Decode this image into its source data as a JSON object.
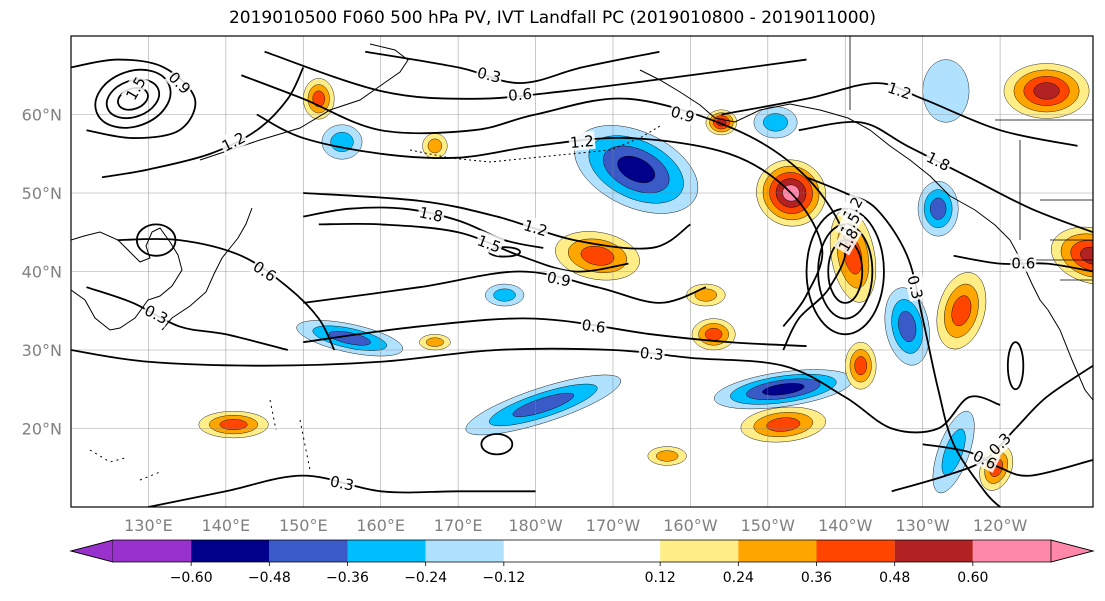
{
  "title": "2019010500 F060 500 hPa PV, IVT Landfall PC (2019010800 - 2019011000)",
  "map": {
    "lon_ticks": [
      {
        "label": "130°E",
        "lon": 130
      },
      {
        "label": "140°E",
        "lon": 140
      },
      {
        "label": "150°E",
        "lon": 150
      },
      {
        "label": "160°E",
        "lon": 160
      },
      {
        "label": "170°E",
        "lon": 170
      },
      {
        "label": "180°W",
        "lon": 180
      },
      {
        "label": "170°W",
        "lon": 190
      },
      {
        "label": "160°W",
        "lon": 200
      },
      {
        "label": "150°W",
        "lon": 210
      },
      {
        "label": "140°W",
        "lon": 220
      },
      {
        "label": "130°W",
        "lon": 230
      },
      {
        "label": "120°W",
        "lon": 240
      }
    ],
    "lat_ticks": [
      {
        "label": "20°N",
        "lat": 20
      },
      {
        "label": "30°N",
        "lat": 30
      },
      {
        "label": "40°N",
        "lat": 40
      },
      {
        "label": "50°N",
        "lat": 50
      },
      {
        "label": "60°N",
        "lat": 60
      }
    ],
    "fill_blobs": [
      {
        "lon": 193,
        "lat": 53,
        "rx": 8.5,
        "ry": 4.8,
        "rot": 25,
        "level": -0.6
      },
      {
        "lon": 213,
        "lat": 50,
        "rx": 4.5,
        "ry": 4.2,
        "rot": 20,
        "level": 0.6
      },
      {
        "lon": 188,
        "lat": 42,
        "rx": 5.5,
        "ry": 3,
        "rot": 10,
        "level": 0.42
      },
      {
        "lon": 221,
        "lat": 42,
        "rx": 2.8,
        "ry": 6,
        "rot": -10,
        "level": 0.45
      },
      {
        "lon": 232,
        "lat": 48,
        "rx": 2.6,
        "ry": 3.5,
        "rot": 0,
        "level": -0.45
      },
      {
        "lon": 181,
        "lat": 23,
        "rx": 10.5,
        "ry": 2.2,
        "rot": -18,
        "level": -0.48
      },
      {
        "lon": 212,
        "lat": 25,
        "rx": 9,
        "ry": 2.2,
        "rot": -8,
        "level": -0.5
      },
      {
        "lon": 235,
        "lat": 35,
        "rx": 3,
        "ry": 5,
        "rot": 15,
        "level": 0.4
      },
      {
        "lon": 228,
        "lat": 33,
        "rx": 2.8,
        "ry": 5,
        "rot": -10,
        "level": -0.38
      },
      {
        "lon": 222,
        "lat": 28,
        "rx": 2,
        "ry": 3,
        "rot": 0,
        "level": 0.36
      },
      {
        "lon": 141,
        "lat": 20.5,
        "rx": 4.5,
        "ry": 1.7,
        "rot": 0,
        "level": 0.4
      },
      {
        "lon": 156,
        "lat": 31.5,
        "rx": 7,
        "ry": 1.8,
        "rot": 12,
        "level": -0.38
      },
      {
        "lon": 252,
        "lat": 42,
        "rx": 5.5,
        "ry": 3.5,
        "rot": 15,
        "level": 0.52
      },
      {
        "lon": 246,
        "lat": 63,
        "rx": 5.5,
        "ry": 3.5,
        "rot": 0,
        "level": 0.5
      },
      {
        "lon": 212,
        "lat": 20.5,
        "rx": 5.5,
        "ry": 2.2,
        "rot": -5,
        "level": 0.42
      },
      {
        "lon": 234,
        "lat": 17,
        "rx": 2,
        "ry": 5.5,
        "rot": 20,
        "level": -0.3
      },
      {
        "lon": 239.5,
        "lat": 15,
        "rx": 2,
        "ry": 3,
        "rot": 20,
        "level": 0.4
      },
      {
        "lon": 152,
        "lat": 62,
        "rx": 2,
        "ry": 2.6,
        "rot": 0,
        "level": 0.38
      },
      {
        "lon": 155,
        "lat": 56.5,
        "rx": 2.6,
        "ry": 2.2,
        "rot": 0,
        "level": -0.32
      },
      {
        "lon": 203,
        "lat": 32,
        "rx": 2.8,
        "ry": 2,
        "rot": 0,
        "level": 0.38
      },
      {
        "lon": 204,
        "lat": 59,
        "rx": 2,
        "ry": 1.6,
        "rot": 0,
        "level": 0.5
      },
      {
        "lon": 211,
        "lat": 59,
        "rx": 2.8,
        "ry": 2,
        "rot": 0,
        "level": -0.3
      },
      {
        "lon": 233,
        "lat": 63,
        "rx": 3,
        "ry": 4,
        "rot": 0,
        "level": -0.22
      },
      {
        "lon": 167,
        "lat": 31,
        "rx": 2,
        "ry": 1,
        "rot": 0,
        "level": 0.3
      },
      {
        "lon": 167,
        "lat": 56,
        "rx": 1.6,
        "ry": 1.6,
        "rot": 0,
        "level": 0.35
      },
      {
        "lon": 197,
        "lat": 16.5,
        "rx": 2.5,
        "ry": 1.2,
        "rot": 0,
        "level": 0.3
      },
      {
        "lon": 202,
        "lat": 37,
        "rx": 2.5,
        "ry": 1.4,
        "rot": 0,
        "level": 0.34
      },
      {
        "lon": 176,
        "lat": 37,
        "rx": 2.5,
        "ry": 1.4,
        "rot": 0,
        "level": -0.27
      }
    ],
    "contour_lines": [
      {
        "label": "0.3",
        "points": [
          [
            120,
            30
          ],
          [
            130,
            28.5
          ],
          [
            145,
            28
          ],
          [
            160,
            28.5
          ],
          [
            175,
            30
          ],
          [
            190,
            30
          ],
          [
            200,
            29
          ],
          [
            212,
            28
          ],
          [
            220,
            24
          ],
          [
            226,
            20
          ],
          [
            232,
            20
          ],
          [
            236,
            24
          ],
          [
            240,
            23
          ]
        ]
      },
      {
        "label": "0.6",
        "points": [
          [
            150,
            31
          ],
          [
            165,
            33
          ],
          [
            180,
            34
          ],
          [
            195,
            32
          ],
          [
            205,
            31
          ],
          [
            215,
            30.5
          ]
        ]
      },
      {
        "label": "0.9",
        "points": [
          [
            150,
            36
          ],
          [
            165,
            38
          ],
          [
            178,
            40
          ],
          [
            188,
            38
          ],
          [
            196,
            36
          ],
          [
            202,
            38
          ]
        ]
      },
      {
        "label": "1.2",
        "points": [
          [
            150,
            50
          ],
          [
            165,
            49
          ],
          [
            175,
            47
          ],
          [
            185,
            44
          ],
          [
            195,
            43
          ],
          [
            200,
            46
          ]
        ]
      },
      {
        "label": "1.5",
        "points": [
          [
            152,
            46
          ],
          [
            160,
            46
          ],
          [
            170,
            45
          ],
          [
            178,
            42
          ],
          [
            185,
            40
          ],
          [
            192,
            41
          ]
        ]
      },
      {
        "label": "1.8",
        "points": [
          [
            150,
            47
          ],
          [
            156,
            48
          ],
          [
            163,
            48
          ],
          [
            170,
            46.5
          ],
          [
            176,
            44
          ],
          [
            181,
            43
          ]
        ]
      },
      {
        "label": "0.9",
        "points": [
          [
            142,
            65
          ],
          [
            150,
            62
          ],
          [
            160,
            58
          ],
          [
            172,
            58
          ],
          [
            180,
            60
          ],
          [
            192,
            62
          ],
          [
            206,
            58
          ],
          [
            215,
            52
          ],
          [
            220,
            44
          ],
          [
            218,
            38
          ],
          [
            214,
            34
          ],
          [
            212,
            30
          ]
        ]
      },
      {
        "label": "1.2",
        "points": [
          [
            144,
            60
          ],
          [
            150,
            57
          ],
          [
            160,
            55
          ],
          [
            170,
            54.5
          ],
          [
            180,
            56
          ],
          [
            192,
            57
          ],
          [
            205,
            55
          ],
          [
            213,
            50
          ],
          [
            217,
            43
          ],
          [
            215,
            37
          ],
          [
            212,
            33
          ]
        ]
      },
      {
        "label": "0.3",
        "points": [
          [
            158,
            68
          ],
          [
            170,
            66
          ],
          [
            178,
            64
          ],
          [
            186,
            66
          ],
          [
            196,
            68
          ]
        ]
      },
      {
        "label": "0.6",
        "points": [
          [
            145,
            68
          ],
          [
            160,
            63
          ],
          [
            172,
            62
          ],
          [
            184,
            63
          ],
          [
            200,
            65
          ],
          [
            215,
            67
          ]
        ]
      },
      {
        "label": "1.2",
        "points": [
          [
            204,
            60
          ],
          [
            215,
            62
          ],
          [
            224,
            64
          ],
          [
            230,
            62
          ],
          [
            240,
            58
          ],
          [
            250,
            56
          ]
        ]
      },
      {
        "label": "1.8",
        "points": [
          [
            214,
            58
          ],
          [
            222,
            59
          ],
          [
            228,
            56
          ],
          [
            236,
            52
          ],
          [
            244,
            48
          ],
          [
            252,
            45
          ]
        ]
      },
      {
        "label": "0.3",
        "points": [
          [
            215,
            52
          ],
          [
            220,
            50
          ],
          [
            224,
            48
          ],
          [
            228,
            42
          ],
          [
            230,
            34
          ],
          [
            232,
            25
          ],
          [
            234,
            18
          ],
          [
            238,
            12
          ],
          [
            240,
            10
          ]
        ]
      },
      {
        "label": "0.6",
        "points": [
          [
            230,
            18
          ],
          [
            236,
            17
          ],
          [
            240,
            15
          ],
          [
            244,
            14
          ],
          [
            252,
            16
          ]
        ]
      },
      {
        "label": "0.3",
        "points": [
          [
            226,
            12
          ],
          [
            233,
            14
          ],
          [
            238,
            16
          ],
          [
            242,
            20
          ],
          [
            246,
            24
          ],
          [
            252,
            28
          ]
        ]
      },
      {
        "label": "0.6",
        "points": [
          [
            234,
            42
          ],
          [
            240,
            41
          ],
          [
            246,
            41
          ],
          [
            252,
            40
          ]
        ]
      },
      {
        "label": "0.9",
        "points": [
          [
            120,
            66
          ],
          [
            126,
            67
          ],
          [
            132,
            66
          ],
          [
            136,
            62
          ],
          [
            134,
            58
          ],
          [
            128,
            57
          ],
          [
            122,
            58
          ]
        ]
      },
      {
        "label": "1.2",
        "points": [
          [
            124,
            52
          ],
          [
            130,
            53
          ],
          [
            138,
            55
          ],
          [
            144,
            58
          ],
          [
            148,
            62
          ],
          [
            150,
            66
          ]
        ]
      },
      {
        "label": "0.6",
        "points": [
          [
            126,
            44
          ],
          [
            134,
            44
          ],
          [
            142,
            42
          ],
          [
            148,
            38
          ],
          [
            152,
            34
          ],
          [
            154,
            30
          ]
        ]
      },
      {
        "label": "0.3",
        "points": [
          [
            122,
            38
          ],
          [
            128,
            36
          ],
          [
            134,
            33
          ],
          [
            140,
            32
          ],
          [
            148,
            30
          ]
        ]
      },
      {
        "label": "0.3",
        "points": [
          [
            130,
            10
          ],
          [
            140,
            12
          ],
          [
            150,
            14
          ],
          [
            160,
            12
          ],
          [
            170,
            12
          ],
          [
            180,
            12
          ]
        ]
      }
    ],
    "contour_loops": [
      {
        "label": "",
        "lon": 128,
        "lat": 62,
        "rx": 5,
        "ry": 3.5,
        "rot": -20
      },
      {
        "label": "",
        "lon": 128,
        "lat": 62,
        "rx": 3.5,
        "ry": 2.3,
        "rot": -20
      },
      {
        "label": "1.5",
        "lon": 128,
        "lat": 62,
        "rx": 2,
        "ry": 1.3,
        "rot": -20
      },
      {
        "label": "1.2",
        "lon": 220,
        "lat": 40,
        "rx": 5,
        "ry": 8,
        "rot": 0
      },
      {
        "label": "1.5",
        "lon": 220,
        "lat": 40,
        "rx": 3.5,
        "ry": 6,
        "rot": 0
      },
      {
        "label": "1.8",
        "lon": 220,
        "lat": 40,
        "rx": 2.2,
        "ry": 4,
        "rot": 0
      },
      {
        "label": "",
        "lon": 131,
        "lat": 44,
        "rx": 2.5,
        "ry": 2,
        "rot": 0
      },
      {
        "label": "",
        "lon": 175,
        "lat": 18,
        "rx": 2,
        "ry": 1.3,
        "rot": 0
      },
      {
        "label": "",
        "lon": 176,
        "lat": 42.5,
        "rx": 2,
        "ry": 0.6,
        "rot": 0
      },
      {
        "label": "",
        "lon": 242,
        "lat": 28,
        "rx": 1,
        "ry": 3,
        "rot": 0
      }
    ]
  },
  "colorbar": {
    "levels": [
      -0.72,
      -0.6,
      -0.48,
      -0.36,
      -0.24,
      -0.12,
      0.12,
      0.24,
      0.36,
      0.48,
      0.6,
      0.72
    ],
    "colors": [
      "#9932CC",
      "#00008B",
      "#3A5BC7",
      "#00BFFF",
      "#B0E2FF",
      "#FFFFFF",
      "#FFEE88",
      "#FFA500",
      "#FF4500",
      "#B22222",
      "#FF88AA"
    ],
    "min_extend_color": "#9932CC",
    "max_extend_color": "#FF88AA",
    "ticks": [
      {
        "label": "−0.60",
        "value": -0.6
      },
      {
        "label": "−0.48",
        "value": -0.48
      },
      {
        "label": "−0.36",
        "value": -0.36
      },
      {
        "label": "−0.24",
        "value": -0.24
      },
      {
        "label": "−0.12",
        "value": -0.12
      },
      {
        "label": "0.12",
        "value": 0.12
      },
      {
        "label": "0.24",
        "value": 0.24
      },
      {
        "label": "0.36",
        "value": 0.36
      },
      {
        "label": "0.48",
        "value": 0.48
      },
      {
        "label": "0.60",
        "value": 0.6
      }
    ]
  }
}
